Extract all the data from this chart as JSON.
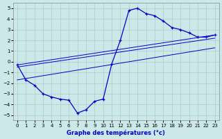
{
  "xlabel": "Graphe des températures (°c)",
  "bg_color": "#cce8e8",
  "grid_color": "#aacccc",
  "line_color": "#0000cc",
  "xlim": [
    -0.5,
    23.5
  ],
  "ylim": [
    -5.5,
    5.5
  ],
  "xticks": [
    0,
    1,
    2,
    3,
    4,
    5,
    6,
    7,
    8,
    9,
    10,
    11,
    12,
    13,
    14,
    15,
    16,
    17,
    18,
    19,
    20,
    21,
    22,
    23
  ],
  "yticks": [
    -5,
    -4,
    -3,
    -2,
    -1,
    0,
    1,
    2,
    3,
    4,
    5
  ],
  "curve_x": [
    0,
    1,
    2,
    3,
    4,
    5,
    6,
    7,
    8,
    9,
    10,
    11,
    12,
    13,
    14,
    15,
    16,
    17,
    18,
    19,
    20,
    21,
    22,
    23
  ],
  "curve_y": [
    -0.3,
    -1.7,
    -2.2,
    -3.0,
    -3.3,
    -3.5,
    -3.6,
    -4.8,
    -4.5,
    -3.7,
    -3.5,
    -0.2,
    2.0,
    4.8,
    5.0,
    4.5,
    4.3,
    3.8,
    3.2,
    3.0,
    2.7,
    2.3,
    2.3,
    2.5
  ],
  "line1_x": [
    0,
    23
  ],
  "line1_y": [
    -0.3,
    2.5
  ],
  "line2_x": [
    0,
    23
  ],
  "line2_y": [
    -0.5,
    2.2
  ],
  "line3_x": [
    0,
    23
  ],
  "line3_y": [
    -1.7,
    1.3
  ]
}
